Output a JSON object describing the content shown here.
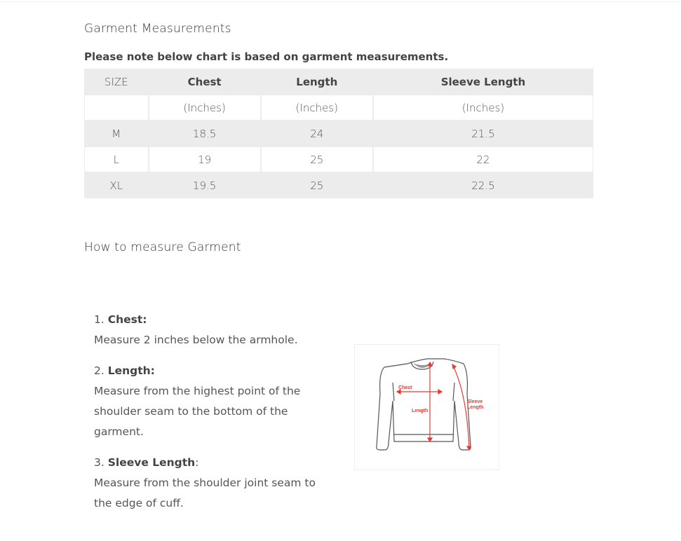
{
  "title": "Garment Measurements",
  "note": "Please note below chart is based on garment measurements.",
  "table": {
    "headers": [
      "SIZE",
      "Chest",
      "Length",
      "Sleeve Length"
    ],
    "units": [
      "",
      "(Inches)",
      "(Inches)",
      "(Inches)"
    ],
    "rows": [
      [
        "M",
        "18.5",
        "24",
        "21.5"
      ],
      [
        "L",
        "19",
        "25",
        "22"
      ],
      [
        "XL",
        "19.5",
        "25",
        "22.5"
      ]
    ]
  },
  "how_to_title": "How to measure Garment",
  "steps": [
    {
      "num": "1. ",
      "label": "Chest:",
      "suffix": "",
      "text": "Measure 2 inches below the armhole."
    },
    {
      "num": "2. ",
      "label": "Length:",
      "suffix": "",
      "text": "Measure from the highest point of the shoulder seam to the bottom of the garment."
    },
    {
      "num": "3. ",
      "label": "Sleeve Length",
      "suffix": ":",
      "text": "Measure from the shoulder joint seam to the edge of cuff."
    }
  ],
  "diagram": {
    "labels": {
      "chest": "Chest",
      "length": "Length",
      "sleeve_1": "Sleeve",
      "sleeve_2": "Length"
    },
    "accent_color": "#e53935"
  }
}
